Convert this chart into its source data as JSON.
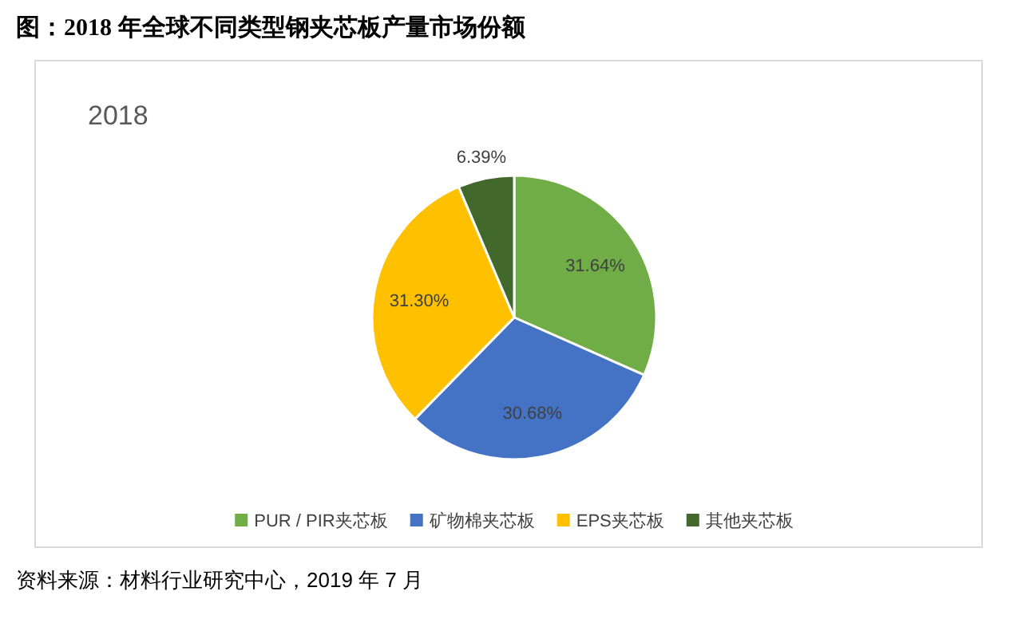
{
  "chart_data": {
    "type": "pie",
    "title": "图：2018 年全球不同类型钢夹芯板产量市场份额",
    "subtitle": "2018",
    "categories": [
      "PUR / PIR夹芯板",
      "矿物棉夹芯板",
      "EPS夹芯板",
      "其他夹芯板"
    ],
    "values": [
      31.64,
      30.68,
      31.3,
      6.39
    ],
    "colors": [
      "#70ad47",
      "#4472c4",
      "#ffc000",
      "#43682b"
    ],
    "value_labels": [
      "31.64%",
      "30.68%",
      "31.30%",
      "6.39%"
    ],
    "legend": "bottom",
    "annotations": [
      "资料来源：材料行业研究中心，2019 年 7 月"
    ]
  }
}
